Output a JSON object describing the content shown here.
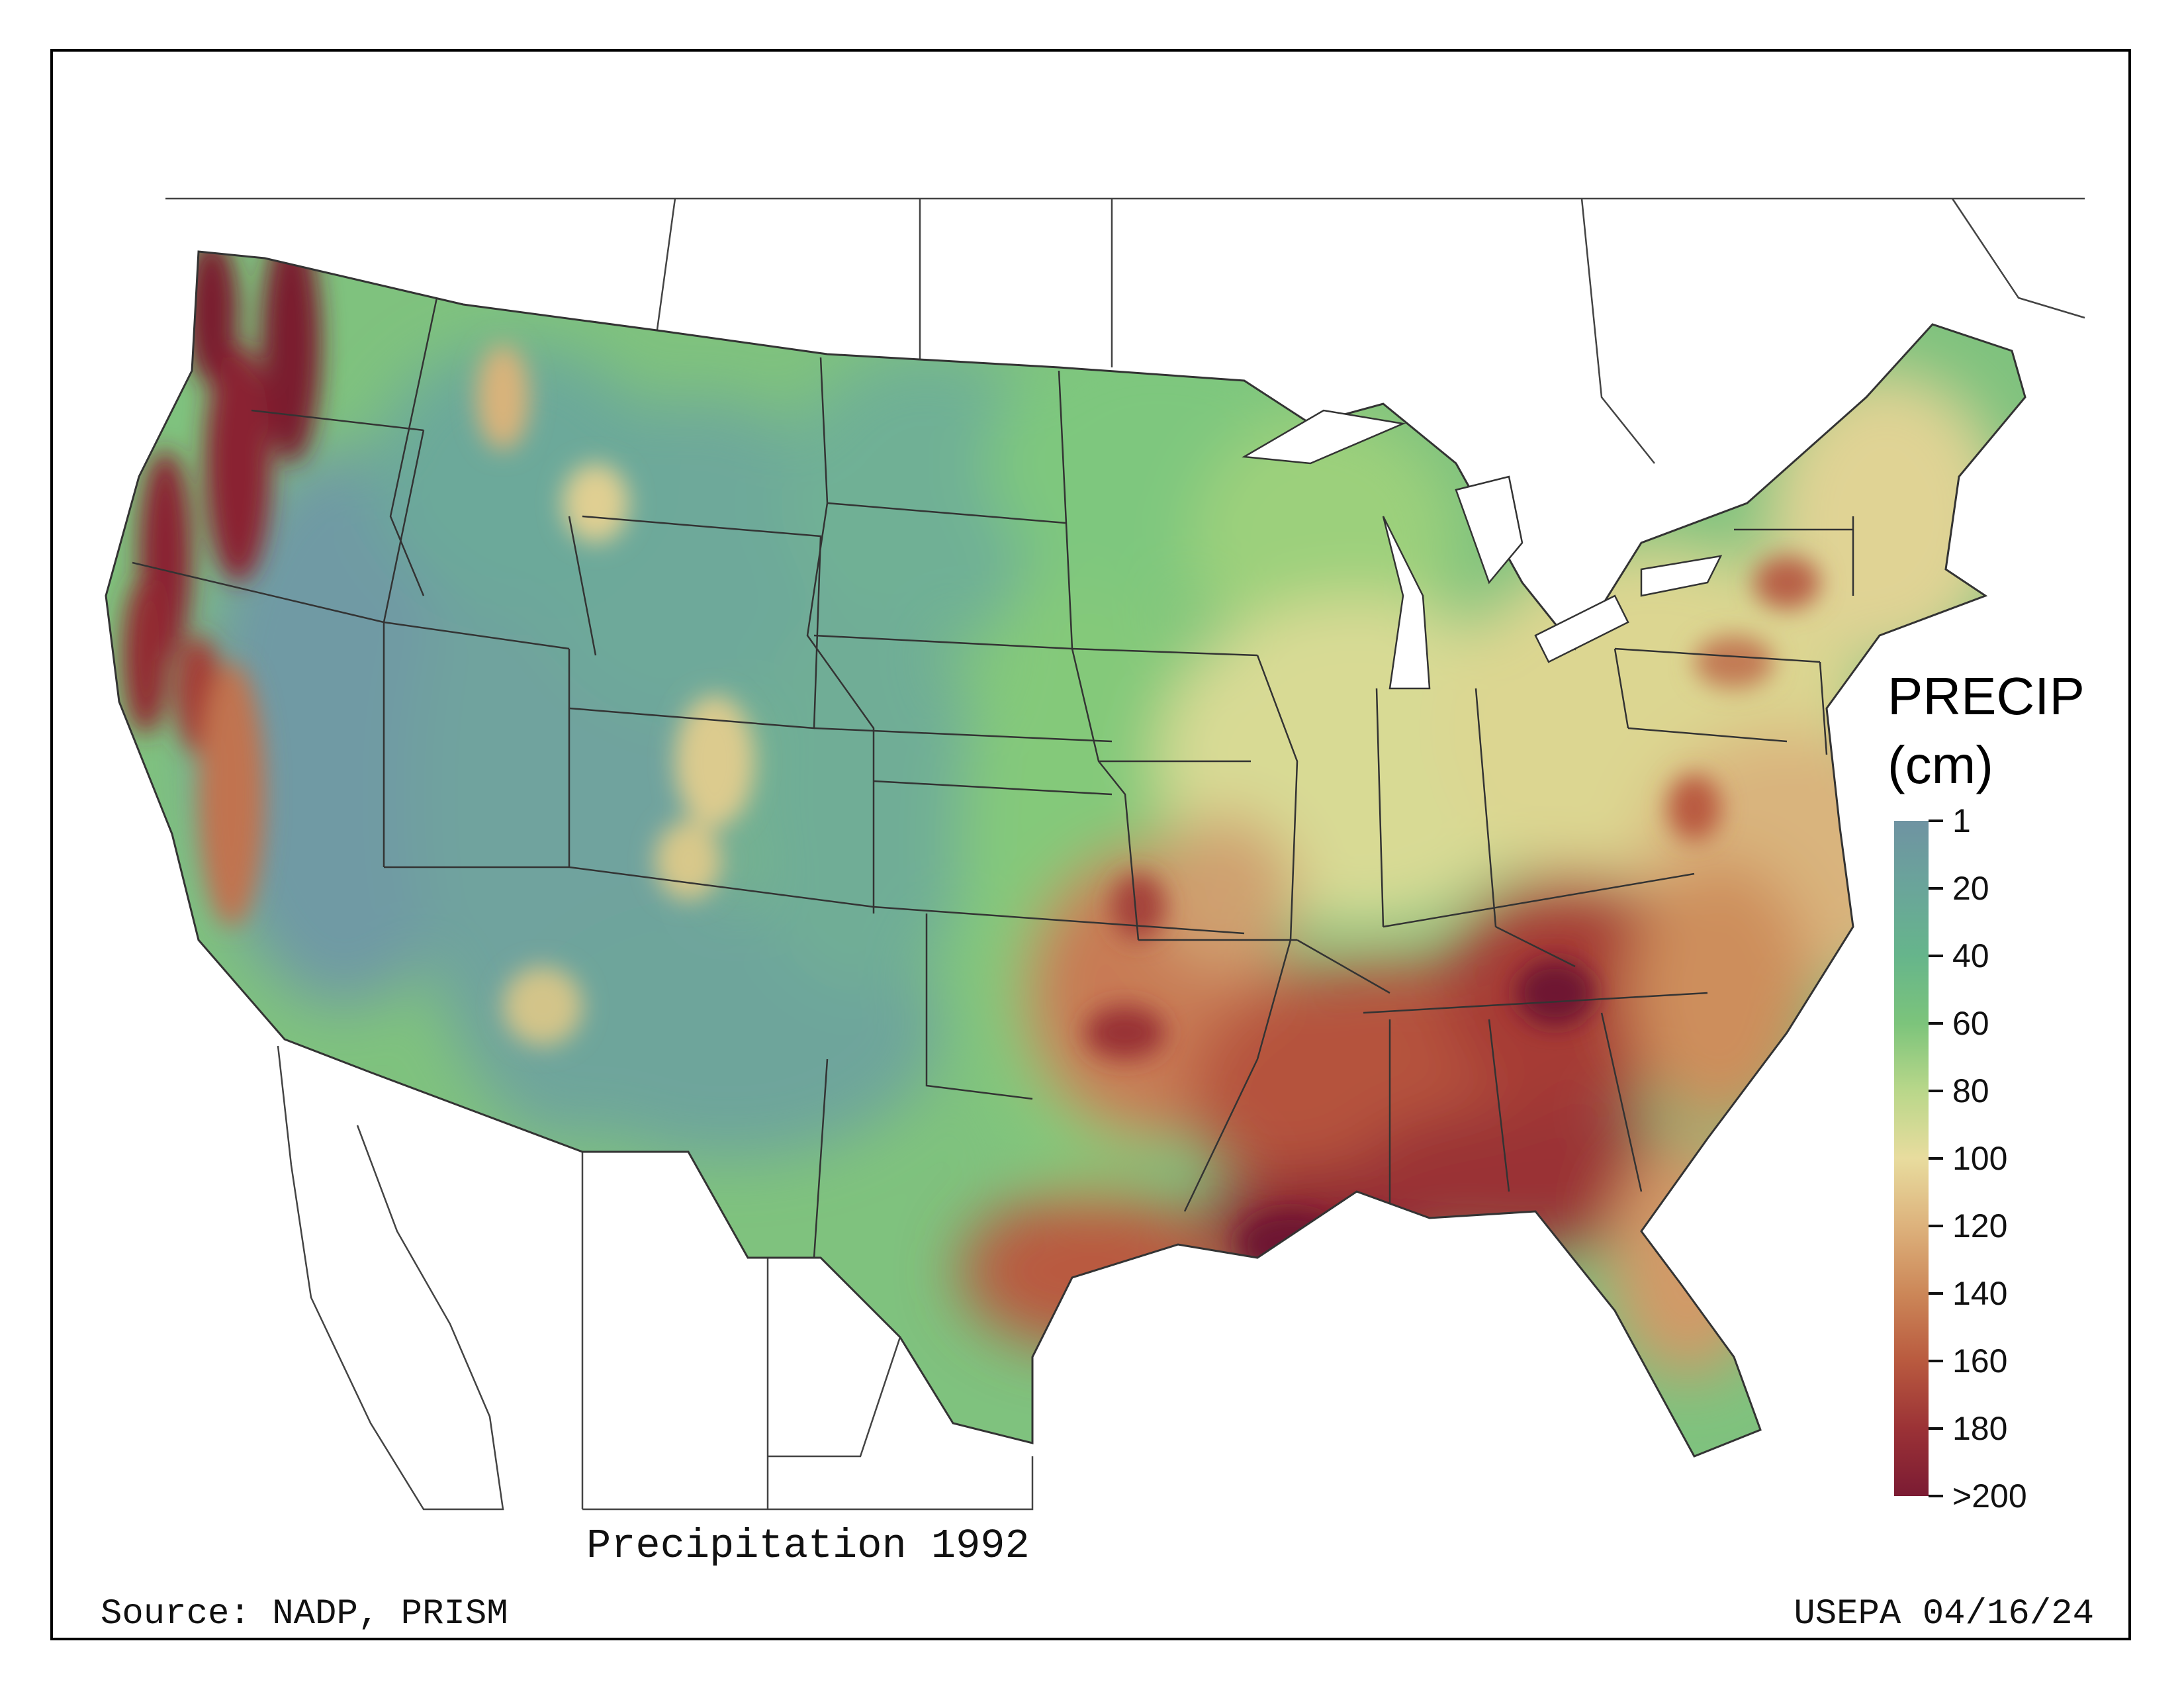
{
  "map": {
    "title": "Precipitation 1992",
    "source": "Source: NADP, PRISM",
    "credit": "USEPA 04/16/24",
    "region": "Contiguous United States",
    "colors": {
      "dry": "#6f95a3",
      "low": "#64b888",
      "mid_low": "#8ccf78",
      "mid": "#e6d99b",
      "mid_high": "#d39a68",
      "high": "#b5432e",
      "very_high": "#7a1a2e",
      "border": "#333333"
    }
  },
  "legend": {
    "title_line1": "PRECIP",
    "title_line2": "(cm)",
    "ticks": [
      "1",
      "20",
      "40",
      "60",
      "80",
      "100",
      "120",
      "140",
      "160",
      "180",
      ">200"
    ],
    "stops": [
      "#6f93a2",
      "#6aa59a",
      "#66b58b",
      "#7cc47b",
      "#b9d78a",
      "#e8dc9e",
      "#ddb27c",
      "#cc8758",
      "#b95a3f",
      "#9b3236",
      "#7b1b33"
    ]
  }
}
